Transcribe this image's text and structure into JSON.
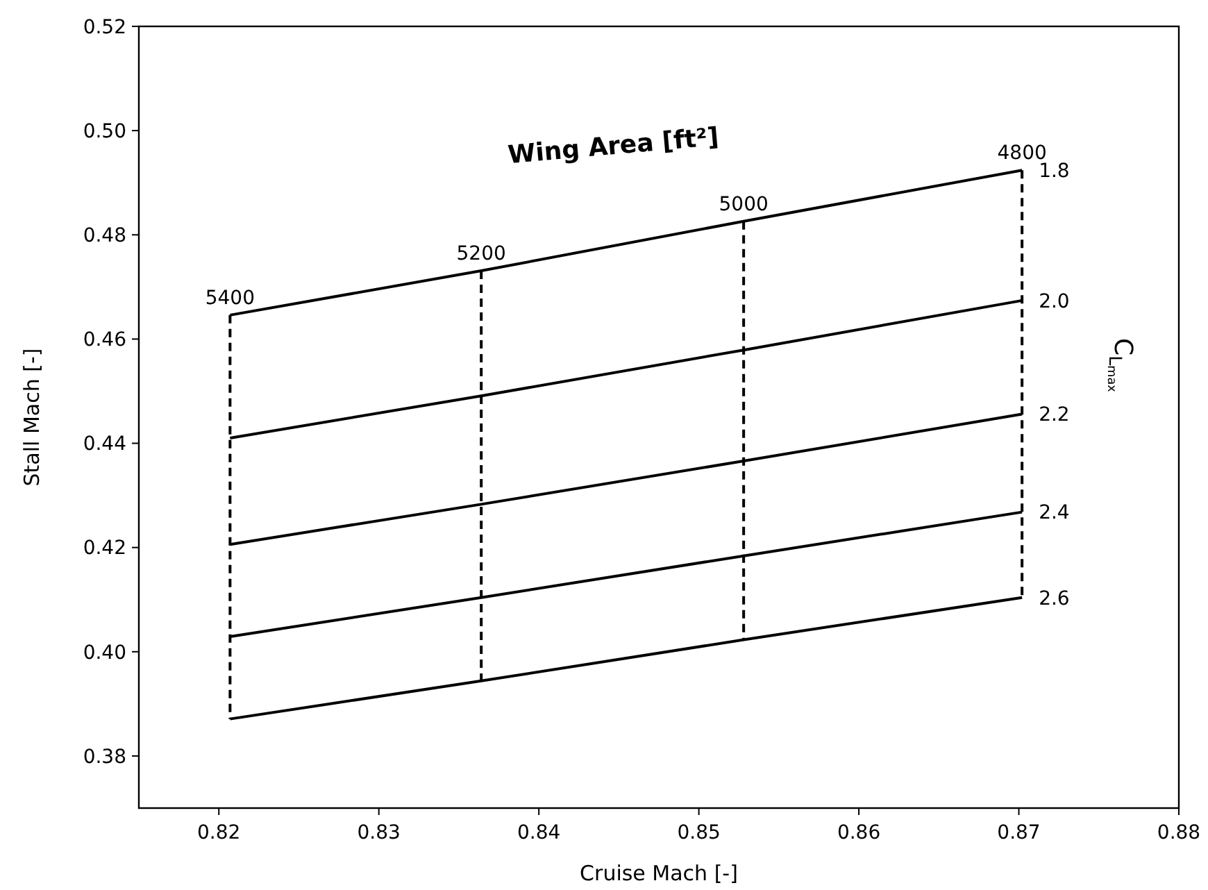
{
  "chart_data": {
    "type": "line",
    "xlabel": "Cruise Mach [-]",
    "ylabel": "Stall Mach [-]",
    "annotations": [
      "Wing Area [ft²]",
      "C$_{L}$$_{max}$"
    ],
    "xlim": [
      0.815,
      0.88
    ],
    "xticks": [
      0.82,
      0.83,
      0.84,
      0.85,
      0.86,
      0.87,
      0.88
    ],
    "ylim": [
      0.37,
      0.52
    ],
    "yticks": [
      0.38,
      {
        "value": 0.4,
        "label": "0.40"
      },
      0.42,
      0.44,
      0.46,
      0.48,
      {
        "value": 0.5,
        "label": "0.50"
      },
      0.52
    ],
    "grid": false,
    "marker": "none",
    "series": [
      {
        "name": "1.8",
        "color": "#000000",
        "line_style": "solid",
        "x": [
          0.8207,
          0.8364,
          0.8528,
          0.8702
        ],
        "values": [
          0.4646,
          0.4731,
          0.4826,
          0.4924
        ]
      },
      {
        "name": "2.0",
        "color": "#000000",
        "line_style": "solid",
        "x": [
          0.8207,
          0.8364,
          0.8528,
          0.8702
        ],
        "values": [
          0.441,
          0.4491,
          0.4579,
          0.4674
        ]
      },
      {
        "name": "2.2",
        "color": "#000000",
        "line_style": "solid",
        "x": [
          0.8207,
          0.8364,
          0.8528,
          0.8702
        ],
        "values": [
          0.4206,
          0.4283,
          0.4366,
          0.4456
        ]
      },
      {
        "name": "2.4",
        "color": "#000000",
        "line_style": "solid",
        "x": [
          0.8207,
          0.8364,
          0.8528,
          0.8702
        ],
        "values": [
          0.4029,
          0.4104,
          0.4184,
          0.4268
        ]
      },
      {
        "name": "2.6",
        "color": "#000000",
        "line_style": "solid",
        "x": [
          0.8207,
          0.8364,
          0.8528,
          0.8702
        ],
        "values": [
          0.3871,
          0.3944,
          0.4023,
          0.4104
        ]
      },
      {
        "name": "5400",
        "color": "#000000",
        "line_style": "dashed",
        "x": [
          0.8207,
          0.8207,
          0.8207,
          0.8207,
          0.8207
        ],
        "values": [
          0.4646,
          0.441,
          0.4206,
          0.4029,
          0.3871
        ]
      },
      {
        "name": "5200",
        "color": "#000000",
        "line_style": "dashed",
        "x": [
          0.8364,
          0.8364,
          0.8364,
          0.8364,
          0.8364
        ],
        "values": [
          0.4731,
          0.4491,
          0.4283,
          0.4104,
          0.3944
        ]
      },
      {
        "name": "5000",
        "color": "#000000",
        "line_style": "dashed",
        "x": [
          0.8528,
          0.8528,
          0.8528,
          0.8528,
          0.8528
        ],
        "values": [
          0.4826,
          0.4579,
          0.4366,
          0.4184,
          0.4023
        ]
      },
      {
        "name": "4800",
        "color": "#000000",
        "line_style": "dashed",
        "x": [
          0.8702,
          0.8702,
          0.8702,
          0.8702,
          0.8702
        ],
        "values": [
          0.4924,
          0.4674,
          0.4456,
          0.4268,
          0.4104
        ]
      }
    ]
  }
}
